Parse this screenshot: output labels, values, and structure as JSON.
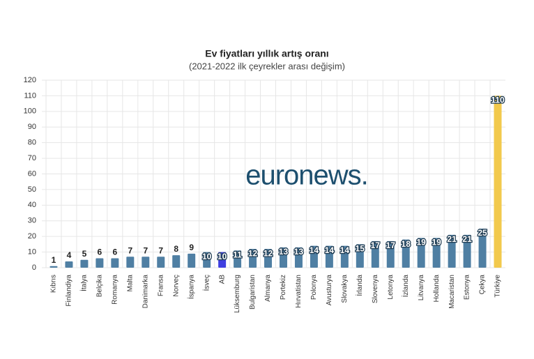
{
  "chart_data": {
    "type": "bar",
    "title": "Ev fiyatları yıllık artış oranı",
    "subtitle": "(2021-2022 ilk çeyrekler arası değişim)",
    "watermark": "euronews.",
    "categories": [
      "Kıbrıs",
      "Finlandiya",
      "İtalya",
      "Belçika",
      "Romanya",
      "Malta",
      "Danimarka",
      "Fransa",
      "Norveç",
      "İspanya",
      "İsveç",
      "AB",
      "Lüksemburg",
      "Bulgaristan",
      "Almanya",
      "Portekiz",
      "Hırvatistan",
      "Polonya",
      "Avusturya",
      "Slovakya",
      "İrlanda",
      "Slovenya",
      "Letonya",
      "İzlanda",
      "Litvanya",
      "Hollanda",
      "Macaristan",
      "Estonya",
      "Çekya",
      "Türkiye"
    ],
    "values": [
      1,
      4,
      5,
      6,
      6,
      7,
      7,
      7,
      8,
      9,
      10,
      10,
      11,
      12,
      12,
      13,
      13,
      14,
      14,
      14,
      15,
      17,
      17,
      18,
      19,
      19,
      21,
      21,
      25,
      110
    ],
    "colors": [
      "#4f7fa3",
      "#4f7fa3",
      "#4f7fa3",
      "#4f7fa3",
      "#4f7fa3",
      "#4f7fa3",
      "#4f7fa3",
      "#4f7fa3",
      "#4f7fa3",
      "#4f7fa3",
      "#4f7fa3",
      "#3f3fe0",
      "#4f7fa3",
      "#4f7fa3",
      "#4f7fa3",
      "#4f7fa3",
      "#4f7fa3",
      "#4f7fa3",
      "#4f7fa3",
      "#4f7fa3",
      "#4f7fa3",
      "#4f7fa3",
      "#4f7fa3",
      "#4f7fa3",
      "#4f7fa3",
      "#4f7fa3",
      "#4f7fa3",
      "#4f7fa3",
      "#4f7fa3",
      "#f2c94c"
    ],
    "ylim": [
      0,
      120
    ],
    "yticks": [
      0,
      10,
      20,
      30,
      40,
      50,
      60,
      70,
      80,
      90,
      100,
      110,
      120
    ],
    "grid": true
  }
}
